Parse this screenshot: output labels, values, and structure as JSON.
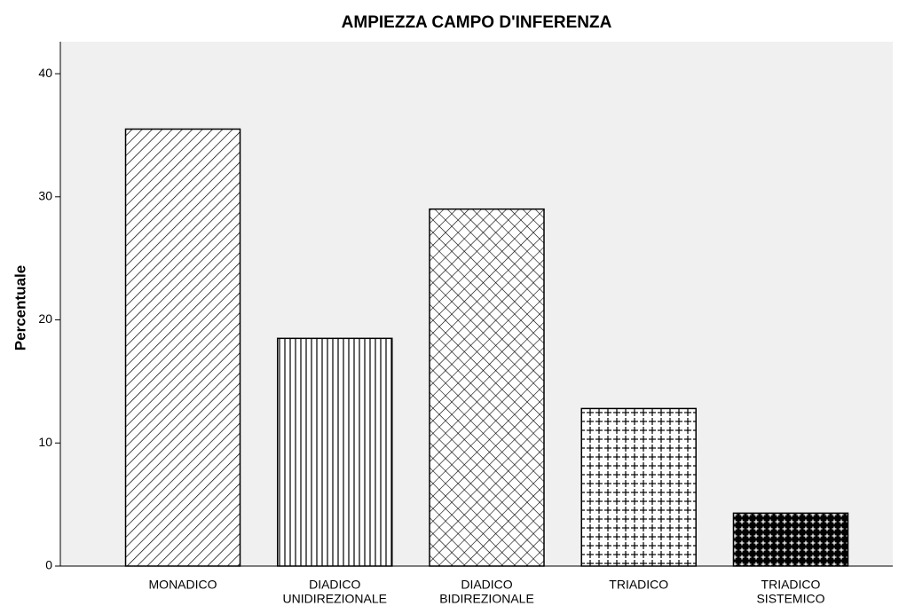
{
  "chart_data": {
    "type": "bar",
    "title": "AMPIEZZA CAMPO D'INFERENZA",
    "y_label": "Percentuale",
    "categories": [
      [
        "MONADICO"
      ],
      [
        "DIADICO",
        "UNIDIREZIONALE"
      ],
      [
        "DIADICO",
        "BIDIREZIONALE"
      ],
      [
        "TRIADICO"
      ],
      [
        "TRIADICO",
        "SISTEMICO"
      ]
    ],
    "values": [
      35.5,
      18.5,
      29.0,
      12.8,
      4.3
    ],
    "patterns": [
      "diagonal",
      "vertical",
      "crosshatch",
      "plus",
      "dense-plus"
    ],
    "color": "#000000",
    "ylim": [
      0,
      42.6
    ],
    "yticks": [
      0,
      10,
      20,
      30,
      40
    ],
    "grid": false
  }
}
